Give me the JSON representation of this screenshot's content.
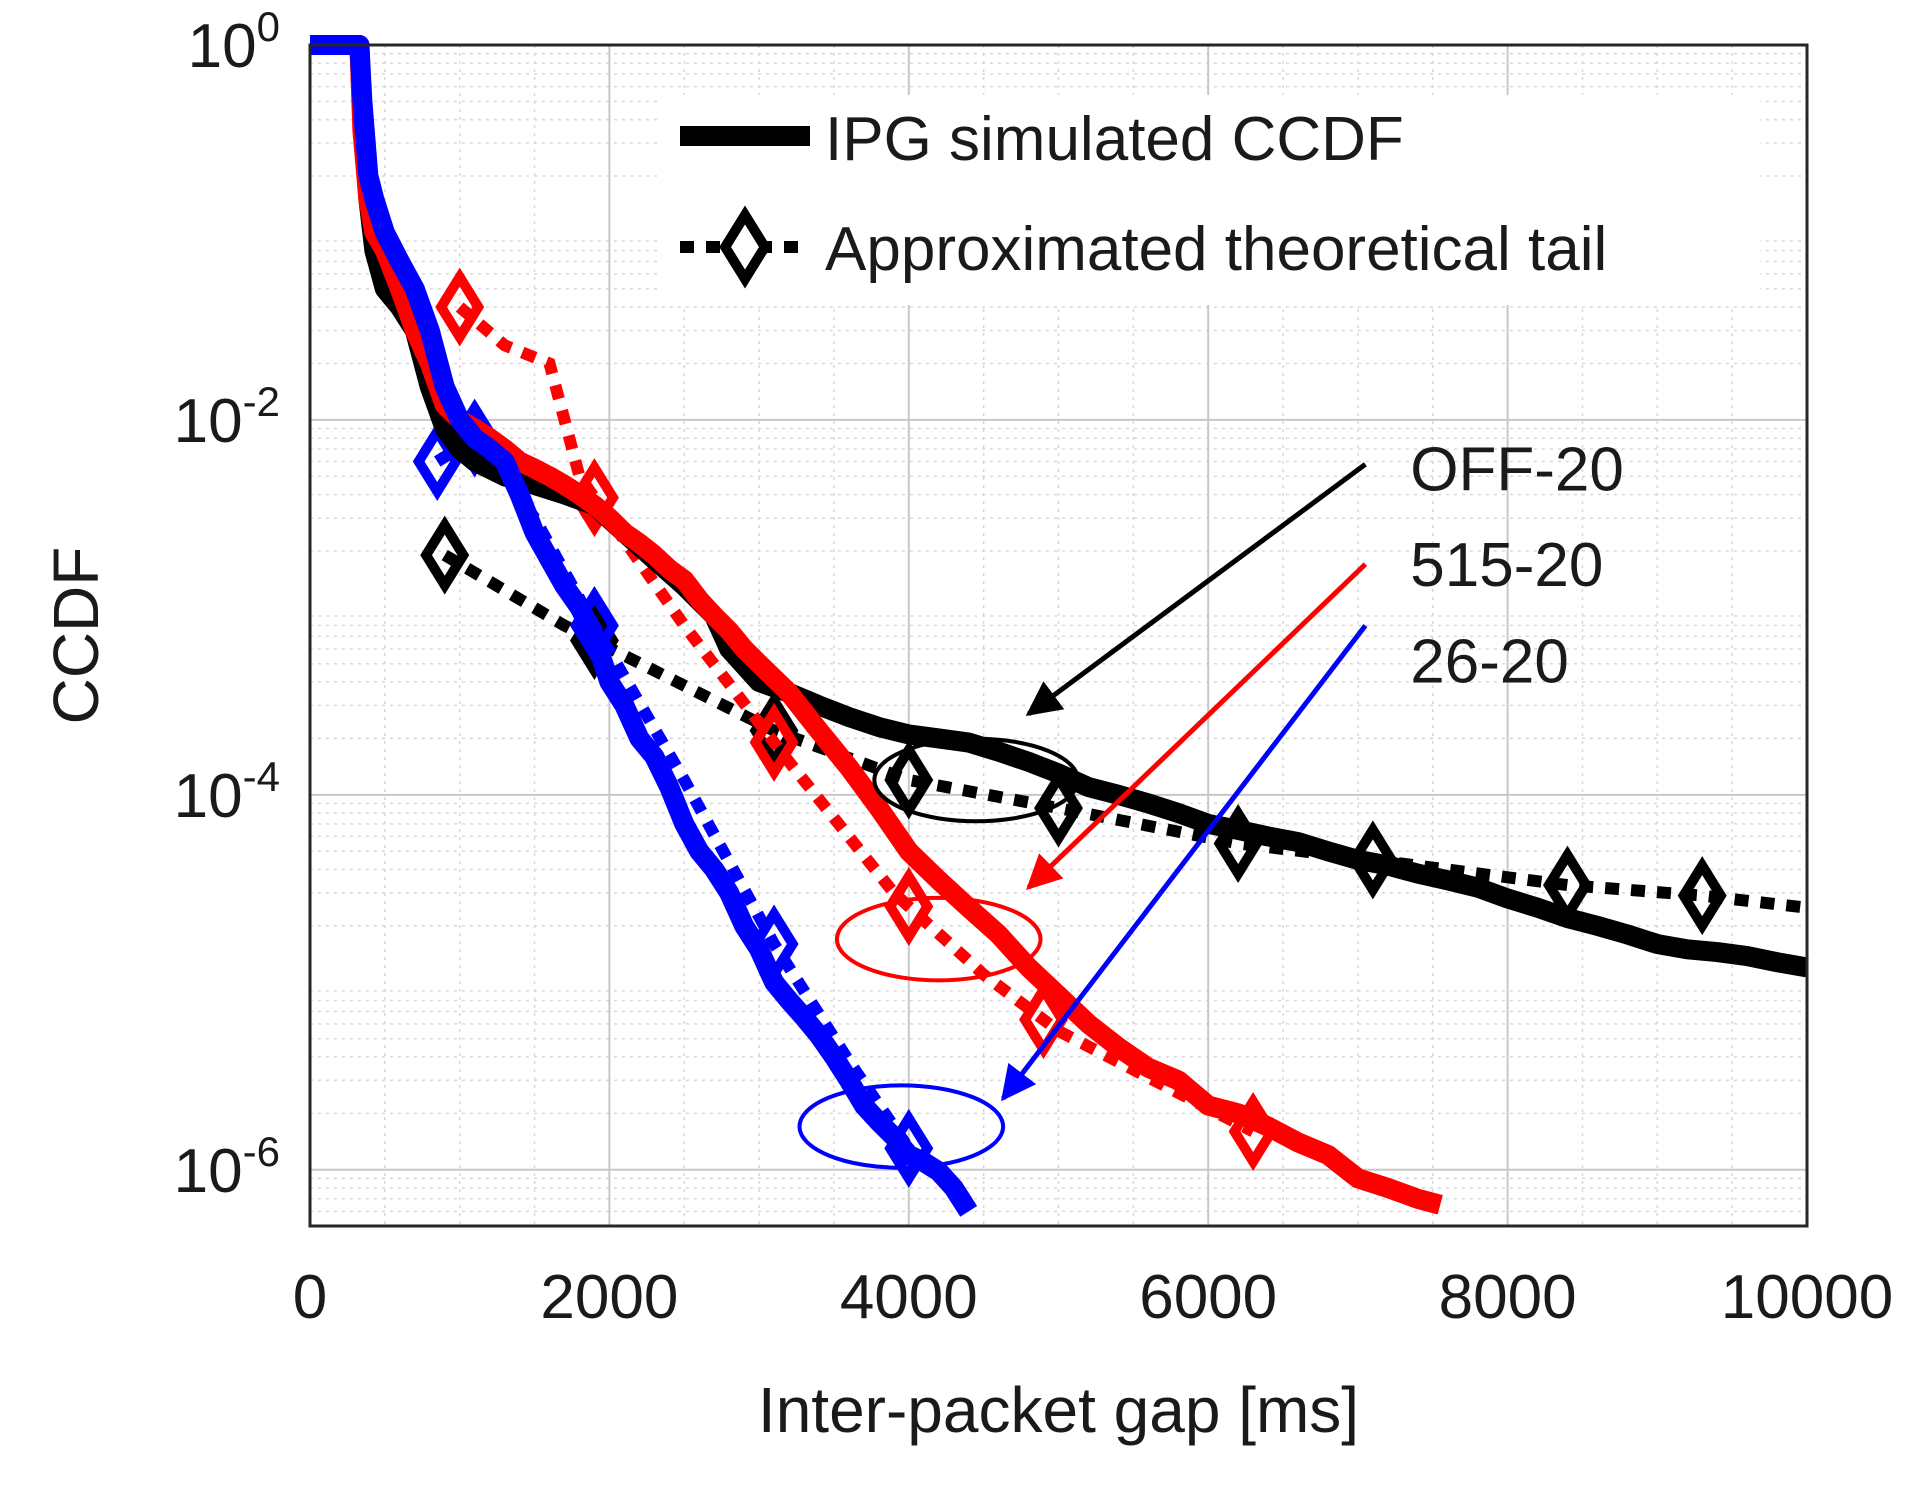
{
  "chart_data": {
    "type": "line",
    "xlabel": "Inter-packet gap [ms]",
    "ylabel": "CCDF",
    "xlim": [
      0,
      10000
    ],
    "ylim_log10": [
      -6.3,
      0
    ],
    "yscale": "log",
    "grid": true,
    "minor_grid": true,
    "legend_position": "top-right",
    "x_ticks": [
      0,
      2000,
      4000,
      6000,
      8000,
      10000
    ],
    "x_tick_labels": [
      "0",
      "2000",
      "4000",
      "6000",
      "8000",
      "10000"
    ],
    "y_ticks": [
      {
        "base": "10",
        "exp": "0",
        "value": 1
      },
      {
        "base": "10",
        "exp": "-2",
        "value": 0.01
      },
      {
        "base": "10",
        "exp": "-4",
        "value": 0.0001
      },
      {
        "base": "10",
        "exp": "-6",
        "value": 1e-06
      }
    ],
    "legend": [
      {
        "label": "IPG simulated CCDF",
        "style": "solid"
      },
      {
        "label": "Approximated theoretical tail",
        "style": "dotted-diamond"
      }
    ],
    "series": [
      {
        "name": "OFF-20 simulated",
        "color": "#000000",
        "style": "solid",
        "x": [
          0,
          330,
          350,
          390,
          430,
          500,
          600,
          700,
          800,
          900,
          1000,
          1100,
          1300,
          1500,
          1700,
          1900,
          2100,
          2300,
          2500,
          2700,
          2800,
          3000,
          3200,
          3400,
          3600,
          3800,
          4000,
          4200,
          4400,
          4600,
          4800,
          5000,
          5200,
          5400,
          5600,
          5800,
          6000,
          6200,
          6400,
          6600,
          6800,
          7000,
          7200,
          7400,
          7600,
          7800,
          8000,
          8200,
          8400,
          8600,
          8800,
          9000,
          9200,
          9400,
          9600,
          9800,
          10000
        ],
        "y": [
          1,
          1,
          0.4,
          0.15,
          0.08,
          0.05,
          0.04,
          0.03,
          0.015,
          0.009,
          0.007,
          0.006,
          0.005,
          0.0045,
          0.004,
          0.0035,
          0.0025,
          0.0018,
          0.0013,
          0.0009,
          0.0006,
          0.0004,
          0.00035,
          0.0003,
          0.00026,
          0.00023,
          0.00021,
          0.0002,
          0.00019,
          0.00017,
          0.00015,
          0.00013,
          0.00011,
          0.0001,
          9e-05,
          8e-05,
          7e-05,
          6.5e-05,
          6e-05,
          5.6e-05,
          5e-05,
          4.5e-05,
          4.2e-05,
          3.8e-05,
          3.5e-05,
          3.2e-05,
          2.8e-05,
          2.5e-05,
          2.2e-05,
          2e-05,
          1.8e-05,
          1.6e-05,
          1.5e-05,
          1.45e-05,
          1.38e-05,
          1.28e-05,
          1.2e-05
        ]
      },
      {
        "name": "515-20 simulated",
        "color": "#ff0000",
        "style": "solid",
        "x": [
          0,
          330,
          350,
          390,
          430,
          500,
          600,
          700,
          800,
          900,
          1000,
          1100,
          1200,
          1300,
          1400,
          1500,
          1600,
          1700,
          1800,
          1900,
          2000,
          2100,
          2200,
          2300,
          2400,
          2500,
          2600,
          2700,
          2800,
          2900,
          3000,
          3200,
          3400,
          3600,
          3800,
          4000,
          4200,
          4400,
          4600,
          4800,
          5000,
          5200,
          5400,
          5600,
          5800,
          6000,
          6200,
          6400,
          6600,
          6800,
          7000,
          7200,
          7400,
          7550
        ],
        "y": [
          1,
          1,
          0.35,
          0.15,
          0.1,
          0.08,
          0.05,
          0.03,
          0.02,
          0.012,
          0.01,
          0.009,
          0.008,
          0.007,
          0.006,
          0.0055,
          0.005,
          0.0045,
          0.004,
          0.0035,
          0.003,
          0.0025,
          0.0022,
          0.0019,
          0.0016,
          0.0014,
          0.0011,
          0.0009,
          0.00075,
          0.0006,
          0.0005,
          0.00035,
          0.00022,
          0.00014,
          8.5e-05,
          5e-05,
          3.5e-05,
          2.5e-05,
          1.8e-05,
          1.2e-05,
          8.5e-06,
          6e-06,
          4.5e-06,
          3.5e-06,
          3e-06,
          2.2e-06,
          2e-06,
          1.7e-06,
          1.4e-06,
          1.2e-06,
          9e-07,
          8e-07,
          7e-07,
          6.5e-07
        ]
      },
      {
        "name": "26-20 simulated",
        "color": "#0000ff",
        "style": "solid",
        "x": [
          0,
          330,
          350,
          390,
          430,
          500,
          600,
          700,
          800,
          900,
          1000,
          1100,
          1200,
          1300,
          1400,
          1500,
          1600,
          1700,
          1800,
          1900,
          2000,
          2100,
          2200,
          2300,
          2400,
          2500,
          2600,
          2700,
          2800,
          2900,
          3000,
          3100,
          3200,
          3300,
          3400,
          3500,
          3600,
          3700,
          3800,
          3900,
          4000,
          4100,
          4200,
          4300,
          4400
        ],
        "y": [
          1,
          1,
          0.5,
          0.2,
          0.15,
          0.1,
          0.07,
          0.05,
          0.03,
          0.015,
          0.01,
          0.008,
          0.007,
          0.006,
          0.004,
          0.0025,
          0.0018,
          0.0013,
          0.001,
          0.0007,
          0.0004,
          0.0003,
          0.0002,
          0.00016,
          0.00011,
          7e-05,
          5e-05,
          4e-05,
          3e-05,
          2e-05,
          1.5e-05,
          1e-05,
          8e-06,
          6.5e-06,
          5.2e-06,
          4e-06,
          3e-06,
          2.2e-06,
          1.8e-06,
          1.5e-06,
          1.2e-06,
          1.1e-06,
          9.8e-07,
          8e-07,
          6e-07
        ]
      },
      {
        "name": "OFF-20 theoretical tail",
        "color": "#000000",
        "style": "dotted-diamond",
        "x": [
          900,
          1700,
          3100,
          4000,
          5000,
          6200,
          7100,
          8400,
          9300,
          10000
        ],
        "y": [
          0.0019,
          0.0008,
          0.00022,
          0.00012,
          8.5e-05,
          5.5e-05,
          4.5e-05,
          3.3e-05,
          2.9e-05,
          2.5e-05
        ],
        "markers_x": [
          900,
          1900,
          3100,
          4000,
          5000,
          6200,
          7100,
          8400,
          9300
        ]
      },
      {
        "name": "515-20 theoretical tail",
        "color": "#ff0000",
        "style": "dotted-diamond",
        "x": [
          1000,
          1300,
          1600,
          1800,
          2500,
          3200,
          3900,
          4500,
          5000,
          6300
        ],
        "y": [
          0.04,
          0.025,
          0.02,
          0.005,
          0.0008,
          0.00015,
          3e-05,
          1.1e-05,
          5.5e-06,
          1.6e-06
        ],
        "markers_x": [
          1000,
          1900,
          3100,
          4000,
          4900,
          6300
        ]
      },
      {
        "name": "26-20 theoretical tail",
        "color": "#0000ff",
        "style": "dotted-diamond",
        "x": [
          850,
          1100,
          1300,
          1500,
          1900,
          2500,
          3100,
          3600,
          4000
        ],
        "y": [
          0.006,
          0.008,
          0.005,
          0.003,
          0.0008,
          0.00012,
          1.6e-05,
          3.8e-06,
          1.3e-06
        ],
        "markers_x": [
          850,
          1100,
          1900,
          3100,
          4000
        ]
      }
    ],
    "annotations": [
      {
        "text": "OFF-20",
        "color": "#000000",
        "text_at": [
          7350,
          0.0055
        ],
        "arrow_from": [
          7050,
          0.0058
        ],
        "arrow_to": [
          4800,
          0.00027
        ],
        "ellipse_center": [
          4450,
          0.00012
        ],
        "ellipse_rx": 680,
        "ellipse_ry_log10": 0.22
      },
      {
        "text": "515-20",
        "color": "#ff0000",
        "text_at": [
          7350,
          0.0017
        ],
        "arrow_from": [
          7050,
          0.0017
        ],
        "arrow_to": [
          4800,
          3.2e-05
        ],
        "ellipse_center": [
          4200,
          1.7e-05
        ],
        "ellipse_rx": 680,
        "ellipse_ry_log10": 0.22
      },
      {
        "text": "26-20",
        "color": "#0000ff",
        "text_at": [
          7350,
          0.00052
        ],
        "arrow_from": [
          7050,
          0.0008
        ],
        "arrow_to": [
          4630,
          2.4e-06
        ],
        "ellipse_center": [
          3950,
          1.7e-06
        ],
        "ellipse_rx": 680,
        "ellipse_ry_log10": 0.22
      }
    ]
  }
}
